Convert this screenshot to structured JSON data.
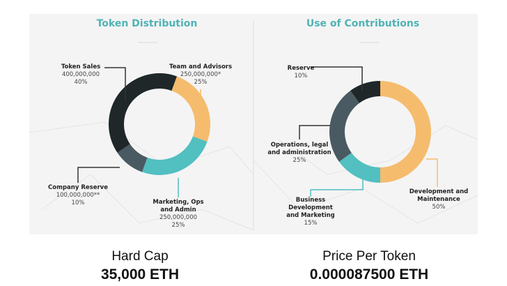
{
  "chart_data": [
    {
      "type": "pie",
      "donut": true,
      "title": "Token Distribution",
      "categories": [
        "Team and Advisors",
        "Marketing, Ops and Admin",
        "Company Reserve",
        "Token Sales"
      ],
      "amounts": [
        "250,000,000*",
        "250,000,000",
        "100,000,000**",
        "400,000,000"
      ],
      "values": [
        25,
        25,
        10,
        40
      ],
      "value_labels": [
        "25%",
        "25%",
        "10%",
        "40%"
      ],
      "colors": [
        "#f5bc6e",
        "#52bfc1",
        "#4a5a62",
        "#1f2729"
      ]
    },
    {
      "type": "pie",
      "donut": true,
      "title": "Use of Contributions",
      "categories": [
        "Development and Maintenance",
        "Business Development and Marketing",
        "Operations, legal and administration",
        "Reserve"
      ],
      "values": [
        50,
        15,
        25,
        10
      ],
      "value_labels": [
        "50%",
        "15%",
        "25%",
        "10%"
      ],
      "colors": [
        "#f5bc6e",
        "#52bfc1",
        "#4a5a62",
        "#1f2729"
      ]
    }
  ],
  "summary": [
    {
      "heading": "Hard Cap",
      "value": "35,000 ETH"
    },
    {
      "heading": "Price Per Token",
      "value": "0.000087500 ETH"
    }
  ]
}
